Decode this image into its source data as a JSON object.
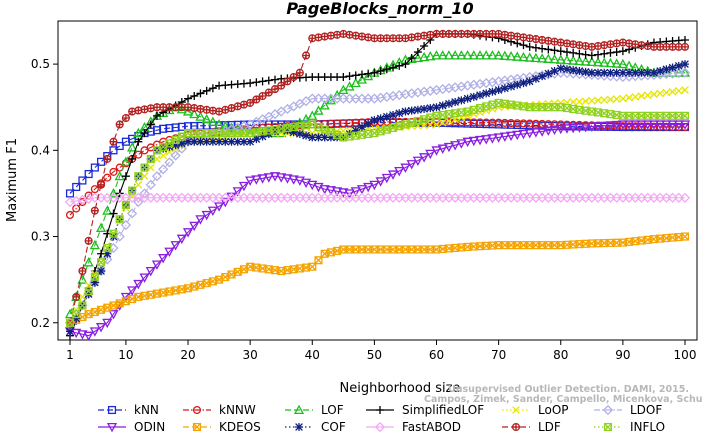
{
  "chart_data": {
    "type": "line",
    "title": "PageBlocks_norm_10",
    "xlabel": "Neighborhood size",
    "ylabel": "Maximum F1",
    "xlim": [
      1,
      100
    ],
    "ylim": [
      0.18,
      0.55
    ],
    "xticks": [
      1,
      10,
      20,
      30,
      40,
      50,
      60,
      70,
      80,
      90,
      100
    ],
    "yticks": [
      0.2,
      0.3,
      0.4,
      0.5
    ],
    "watermark": [
      "Unsupervised Outlier Detection. DAMI, 2015.",
      "Campos, Zimek, Sander, Campello, Micenkova, Schubert, Assent, Houle"
    ],
    "legend_position": "bottom",
    "series": [
      {
        "name": "kNN",
        "color": "#1a2ad6",
        "marker": "square",
        "line": "dashed",
        "points": [
          [
            1,
            0.35
          ],
          [
            3,
            0.365
          ],
          [
            5,
            0.38
          ],
          [
            8,
            0.4
          ],
          [
            10,
            0.41
          ],
          [
            13,
            0.42
          ],
          [
            16,
            0.425
          ],
          [
            20,
            0.428
          ],
          [
            30,
            0.43
          ],
          [
            40,
            0.43
          ],
          [
            50,
            0.432
          ],
          [
            60,
            0.432
          ],
          [
            70,
            0.43
          ],
          [
            80,
            0.428
          ],
          [
            90,
            0.427
          ],
          [
            100,
            0.427
          ]
        ]
      },
      {
        "name": "kNNW",
        "color": "#d81818",
        "marker": "circle",
        "line": "dotdash",
        "points": [
          [
            1,
            0.325
          ],
          [
            3,
            0.34
          ],
          [
            5,
            0.355
          ],
          [
            8,
            0.375
          ],
          [
            10,
            0.385
          ],
          [
            13,
            0.4
          ],
          [
            16,
            0.41
          ],
          [
            20,
            0.418
          ],
          [
            30,
            0.425
          ],
          [
            40,
            0.43
          ],
          [
            50,
            0.433
          ],
          [
            60,
            0.433
          ],
          [
            70,
            0.432
          ],
          [
            80,
            0.43
          ],
          [
            90,
            0.428
          ],
          [
            100,
            0.427
          ]
        ]
      },
      {
        "name": "LOF",
        "color": "#1fbe1f",
        "marker": "triangle",
        "line": "dashed",
        "points": [
          [
            1,
            0.21
          ],
          [
            3,
            0.25
          ],
          [
            6,
            0.31
          ],
          [
            9,
            0.37
          ],
          [
            12,
            0.42
          ],
          [
            15,
            0.44
          ],
          [
            18,
            0.45
          ],
          [
            20,
            0.445
          ],
          [
            25,
            0.43
          ],
          [
            30,
            0.42
          ],
          [
            35,
            0.42
          ],
          [
            40,
            0.44
          ],
          [
            45,
            0.47
          ],
          [
            50,
            0.49
          ],
          [
            55,
            0.505
          ],
          [
            60,
            0.51
          ],
          [
            65,
            0.51
          ],
          [
            70,
            0.51
          ],
          [
            80,
            0.505
          ],
          [
            90,
            0.5
          ],
          [
            95,
            0.49
          ],
          [
            100,
            0.49
          ]
        ]
      },
      {
        "name": "SimplifiedLOF",
        "color": "#000000",
        "marker": "plus",
        "line": "solid",
        "points": [
          [
            1,
            0.185
          ],
          [
            3,
            0.22
          ],
          [
            6,
            0.28
          ],
          [
            9,
            0.35
          ],
          [
            12,
            0.41
          ],
          [
            15,
            0.44
          ],
          [
            20,
            0.46
          ],
          [
            25,
            0.475
          ],
          [
            30,
            0.478
          ],
          [
            35,
            0.483
          ],
          [
            40,
            0.485
          ],
          [
            45,
            0.485
          ],
          [
            50,
            0.49
          ],
          [
            55,
            0.5
          ],
          [
            60,
            0.535
          ],
          [
            65,
            0.535
          ],
          [
            70,
            0.53
          ],
          [
            75,
            0.52
          ],
          [
            80,
            0.515
          ],
          [
            85,
            0.51
          ],
          [
            90,
            0.515
          ],
          [
            95,
            0.525
          ],
          [
            100,
            0.528
          ]
        ]
      },
      {
        "name": "LoOP",
        "color": "#e6e600",
        "marker": "x",
        "line": "dotted",
        "points": [
          [
            1,
            0.2
          ],
          [
            3,
            0.23
          ],
          [
            6,
            0.27
          ],
          [
            9,
            0.32
          ],
          [
            12,
            0.36
          ],
          [
            15,
            0.39
          ],
          [
            20,
            0.41
          ],
          [
            30,
            0.42
          ],
          [
            40,
            0.42
          ],
          [
            50,
            0.425
          ],
          [
            60,
            0.43
          ],
          [
            70,
            0.45
          ],
          [
            80,
            0.455
          ],
          [
            90,
            0.46
          ],
          [
            100,
            0.47
          ]
        ]
      },
      {
        "name": "LDOF",
        "color": "#b0b0e6",
        "marker": "diamond",
        "line": "dotdash",
        "points": [
          [
            1,
            0.2
          ],
          [
            3,
            0.22
          ],
          [
            6,
            0.26
          ],
          [
            9,
            0.3
          ],
          [
            12,
            0.34
          ],
          [
            15,
            0.37
          ],
          [
            20,
            0.41
          ],
          [
            30,
            0.43
          ],
          [
            40,
            0.46
          ],
          [
            50,
            0.46
          ],
          [
            60,
            0.47
          ],
          [
            70,
            0.48
          ],
          [
            80,
            0.49
          ],
          [
            90,
            0.485
          ],
          [
            100,
            0.49
          ]
        ]
      },
      {
        "name": "ODIN",
        "color": "#8a1ee0",
        "marker": "triangle-down",
        "line": "solid",
        "points": [
          [
            1,
            0.19
          ],
          [
            4,
            0.185
          ],
          [
            7,
            0.2
          ],
          [
            10,
            0.23
          ],
          [
            14,
            0.26
          ],
          [
            18,
            0.29
          ],
          [
            22,
            0.32
          ],
          [
            26,
            0.34
          ],
          [
            30,
            0.365
          ],
          [
            34,
            0.37
          ],
          [
            38,
            0.365
          ],
          [
            42,
            0.355
          ],
          [
            46,
            0.35
          ],
          [
            50,
            0.36
          ],
          [
            55,
            0.38
          ],
          [
            60,
            0.4
          ],
          [
            65,
            0.41
          ],
          [
            70,
            0.415
          ],
          [
            75,
            0.42
          ],
          [
            80,
            0.425
          ],
          [
            90,
            0.43
          ],
          [
            100,
            0.43
          ]
        ]
      },
      {
        "name": "KDEOS",
        "color": "#f5a300",
        "marker": "square-x",
        "line": "dashed",
        "points": [
          [
            1,
            0.2
          ],
          [
            4,
            0.21
          ],
          [
            8,
            0.22
          ],
          [
            12,
            0.23
          ],
          [
            16,
            0.235
          ],
          [
            20,
            0.24
          ],
          [
            25,
            0.25
          ],
          [
            30,
            0.265
          ],
          [
            35,
            0.26
          ],
          [
            40,
            0.265
          ],
          [
            42,
            0.28
          ],
          [
            45,
            0.285
          ],
          [
            50,
            0.285
          ],
          [
            55,
            0.285
          ],
          [
            60,
            0.285
          ],
          [
            65,
            0.288
          ],
          [
            70,
            0.29
          ],
          [
            75,
            0.29
          ],
          [
            80,
            0.29
          ],
          [
            85,
            0.292
          ],
          [
            90,
            0.293
          ],
          [
            95,
            0.297
          ],
          [
            100,
            0.3
          ]
        ]
      },
      {
        "name": "COF",
        "color": "#102080",
        "marker": "asterisk",
        "line": "dotted",
        "points": [
          [
            1,
            0.19
          ],
          [
            3,
            0.22
          ],
          [
            6,
            0.26
          ],
          [
            9,
            0.32
          ],
          [
            12,
            0.37
          ],
          [
            15,
            0.4
          ],
          [
            20,
            0.41
          ],
          [
            25,
            0.41
          ],
          [
            30,
            0.41
          ],
          [
            35,
            0.425
          ],
          [
            40,
            0.415
          ],
          [
            45,
            0.415
          ],
          [
            50,
            0.435
          ],
          [
            55,
            0.445
          ],
          [
            60,
            0.45
          ],
          [
            65,
            0.46
          ],
          [
            70,
            0.47
          ],
          [
            75,
            0.48
          ],
          [
            80,
            0.495
          ],
          [
            85,
            0.49
          ],
          [
            90,
            0.49
          ],
          [
            95,
            0.49
          ],
          [
            100,
            0.5
          ]
        ]
      },
      {
        "name": "FastABOD",
        "color": "#f4a8f4",
        "marker": "diamond",
        "line": "solid",
        "points": [
          [
            1,
            0.34
          ],
          [
            5,
            0.345
          ],
          [
            10,
            0.345
          ],
          [
            20,
            0.345
          ],
          [
            30,
            0.345
          ],
          [
            40,
            0.345
          ],
          [
            50,
            0.345
          ],
          [
            60,
            0.345
          ],
          [
            70,
            0.345
          ],
          [
            80,
            0.345
          ],
          [
            90,
            0.345
          ],
          [
            100,
            0.345
          ]
        ]
      },
      {
        "name": "LDF",
        "color": "#b22020",
        "marker": "circle-plus",
        "line": "dashed",
        "points": [
          [
            1,
            0.2
          ],
          [
            3,
            0.26
          ],
          [
            5,
            0.33
          ],
          [
            7,
            0.39
          ],
          [
            9,
            0.43
          ],
          [
            11,
            0.445
          ],
          [
            15,
            0.45
          ],
          [
            20,
            0.45
          ],
          [
            25,
            0.445
          ],
          [
            30,
            0.455
          ],
          [
            35,
            0.475
          ],
          [
            38,
            0.49
          ],
          [
            40,
            0.53
          ],
          [
            45,
            0.535
          ],
          [
            50,
            0.53
          ],
          [
            55,
            0.53
          ],
          [
            60,
            0.535
          ],
          [
            65,
            0.535
          ],
          [
            70,
            0.535
          ],
          [
            75,
            0.53
          ],
          [
            80,
            0.525
          ],
          [
            85,
            0.52
          ],
          [
            90,
            0.525
          ],
          [
            95,
            0.52
          ],
          [
            100,
            0.52
          ]
        ]
      },
      {
        "name": "INFLO",
        "color": "#8fd11f",
        "marker": "square-x",
        "line": "dotted",
        "points": [
          [
            1,
            0.2
          ],
          [
            3,
            0.22
          ],
          [
            6,
            0.27
          ],
          [
            9,
            0.32
          ],
          [
            12,
            0.37
          ],
          [
            15,
            0.4
          ],
          [
            20,
            0.42
          ],
          [
            30,
            0.42
          ],
          [
            40,
            0.43
          ],
          [
            45,
            0.415
          ],
          [
            50,
            0.42
          ],
          [
            55,
            0.43
          ],
          [
            60,
            0.44
          ],
          [
            65,
            0.445
          ],
          [
            70,
            0.455
          ],
          [
            75,
            0.45
          ],
          [
            80,
            0.45
          ],
          [
            85,
            0.445
          ],
          [
            90,
            0.44
          ],
          [
            95,
            0.44
          ],
          [
            100,
            0.44
          ]
        ]
      }
    ]
  }
}
